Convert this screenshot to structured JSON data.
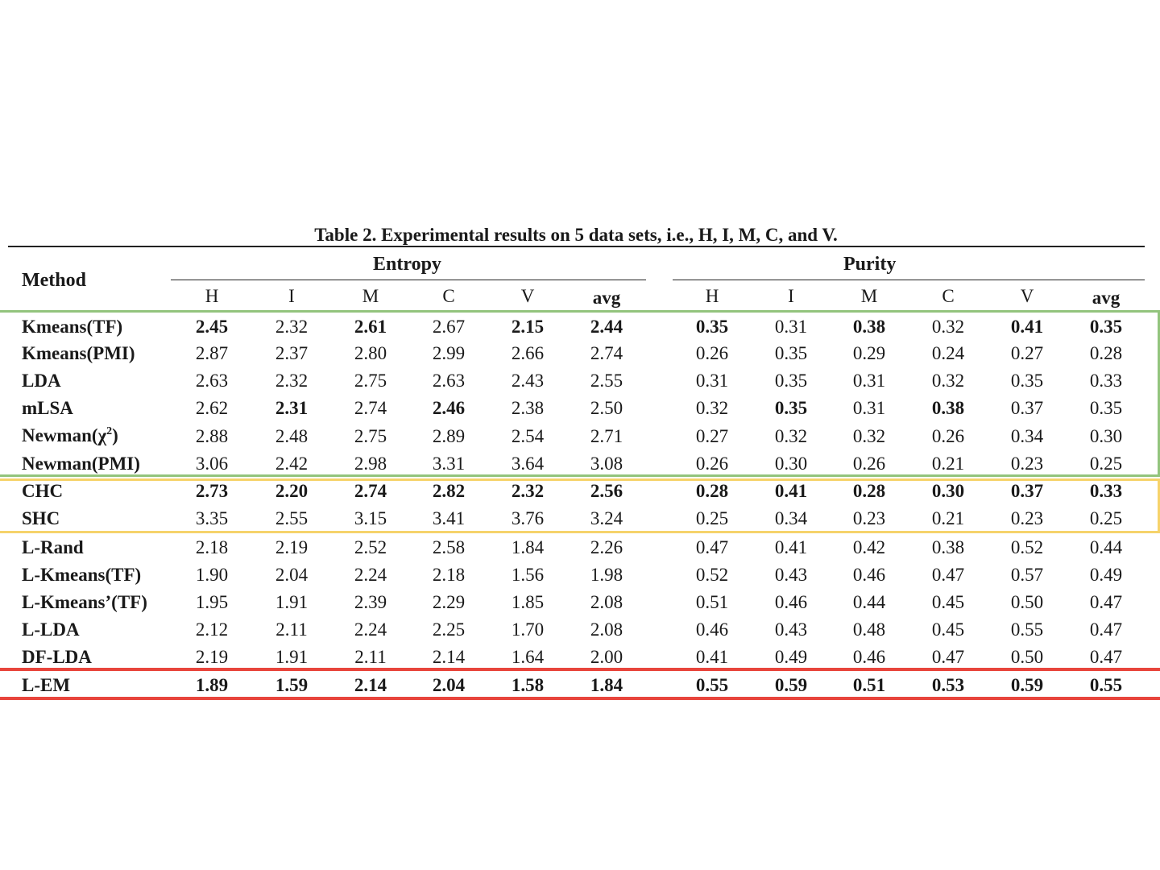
{
  "title": "Table 2. Experimental results on 5 data sets, i.e., H, I, M, C, and V.",
  "header": {
    "method": "Method",
    "entropy": "Entropy",
    "purity": "Purity",
    "subcols": [
      "H",
      "I",
      "M",
      "C",
      "V",
      "avg"
    ]
  },
  "colors": {
    "group_topic_models": "#93c47d",
    "group_hierarchical": "#f6d36b",
    "group_proposed": "#e8453c"
  },
  "rows": [
    {
      "method": "Kmeans(TF)",
      "entropy": [
        "2.45",
        "2.32",
        "2.61",
        "2.67",
        "2.15",
        "2.44"
      ],
      "entropy_bold": [
        true,
        false,
        true,
        false,
        true,
        true
      ],
      "purity": [
        "0.35",
        "0.31",
        "0.38",
        "0.32",
        "0.41",
        "0.35"
      ],
      "purity_bold": [
        true,
        false,
        true,
        false,
        true,
        true
      ]
    },
    {
      "method": "Kmeans(PMI)",
      "entropy": [
        "2.87",
        "2.37",
        "2.80",
        "2.99",
        "2.66",
        "2.74"
      ],
      "entropy_bold": [
        false,
        false,
        false,
        false,
        false,
        false
      ],
      "purity": [
        "0.26",
        "0.35",
        "0.29",
        "0.24",
        "0.27",
        "0.28"
      ],
      "purity_bold": [
        false,
        false,
        false,
        false,
        false,
        false
      ]
    },
    {
      "method": "LDA",
      "entropy": [
        "2.63",
        "2.32",
        "2.75",
        "2.63",
        "2.43",
        "2.55"
      ],
      "entropy_bold": [
        false,
        false,
        false,
        false,
        false,
        false
      ],
      "purity": [
        "0.31",
        "0.35",
        "0.31",
        "0.32",
        "0.35",
        "0.33"
      ],
      "purity_bold": [
        false,
        false,
        false,
        false,
        false,
        false
      ]
    },
    {
      "method": "mLSA",
      "entropy": [
        "2.62",
        "2.31",
        "2.74",
        "2.46",
        "2.38",
        "2.50"
      ],
      "entropy_bold": [
        false,
        true,
        false,
        true,
        false,
        false
      ],
      "purity": [
        "0.32",
        "0.35",
        "0.31",
        "0.38",
        "0.37",
        "0.35"
      ],
      "purity_bold": [
        false,
        true,
        false,
        true,
        false,
        false
      ]
    },
    {
      "method": "Newman(χ2)",
      "entropy": [
        "2.88",
        "2.48",
        "2.75",
        "2.89",
        "2.54",
        "2.71"
      ],
      "entropy_bold": [
        false,
        false,
        false,
        false,
        false,
        false
      ],
      "purity": [
        "0.27",
        "0.32",
        "0.32",
        "0.26",
        "0.34",
        "0.30"
      ],
      "purity_bold": [
        false,
        false,
        false,
        false,
        false,
        false
      ]
    },
    {
      "method": "Newman(PMI)",
      "entropy": [
        "3.06",
        "2.42",
        "2.98",
        "3.31",
        "3.64",
        "3.08"
      ],
      "entropy_bold": [
        false,
        false,
        false,
        false,
        false,
        false
      ],
      "purity": [
        "0.26",
        "0.30",
        "0.26",
        "0.21",
        "0.23",
        "0.25"
      ],
      "purity_bold": [
        false,
        false,
        false,
        false,
        false,
        false
      ]
    },
    {
      "method": "CHC",
      "entropy": [
        "2.73",
        "2.20",
        "2.74",
        "2.82",
        "2.32",
        "2.56"
      ],
      "entropy_bold": [
        true,
        true,
        true,
        true,
        true,
        true
      ],
      "purity": [
        "0.28",
        "0.41",
        "0.28",
        "0.30",
        "0.37",
        "0.33"
      ],
      "purity_bold": [
        true,
        true,
        true,
        true,
        true,
        true
      ]
    },
    {
      "method": "SHC",
      "entropy": [
        "3.35",
        "2.55",
        "3.15",
        "3.41",
        "3.76",
        "3.24"
      ],
      "entropy_bold": [
        false,
        false,
        false,
        false,
        false,
        false
      ],
      "purity": [
        "0.25",
        "0.34",
        "0.23",
        "0.21",
        "0.23",
        "0.25"
      ],
      "purity_bold": [
        false,
        false,
        false,
        false,
        false,
        false
      ]
    },
    {
      "method": "L-Rand",
      "entropy": [
        "2.18",
        "2.19",
        "2.52",
        "2.58",
        "1.84",
        "2.26"
      ],
      "entropy_bold": [
        false,
        false,
        false,
        false,
        false,
        false
      ],
      "purity": [
        "0.47",
        "0.41",
        "0.42",
        "0.38",
        "0.52",
        "0.44"
      ],
      "purity_bold": [
        false,
        false,
        false,
        false,
        false,
        false
      ]
    },
    {
      "method": "L-Kmeans(TF)",
      "entropy": [
        "1.90",
        "2.04",
        "2.24",
        "2.18",
        "1.56",
        "1.98"
      ],
      "entropy_bold": [
        false,
        false,
        false,
        false,
        false,
        false
      ],
      "purity": [
        "0.52",
        "0.43",
        "0.46",
        "0.47",
        "0.57",
        "0.49"
      ],
      "purity_bold": [
        false,
        false,
        false,
        false,
        false,
        false
      ]
    },
    {
      "method": "L-Kmeans’(TF)",
      "entropy": [
        "1.95",
        "1.91",
        "2.39",
        "2.29",
        "1.85",
        "2.08"
      ],
      "entropy_bold": [
        false,
        false,
        false,
        false,
        false,
        false
      ],
      "purity": [
        "0.51",
        "0.46",
        "0.44",
        "0.45",
        "0.50",
        "0.47"
      ],
      "purity_bold": [
        false,
        false,
        false,
        false,
        false,
        false
      ]
    },
    {
      "method": "L-LDA",
      "entropy": [
        "2.12",
        "2.11",
        "2.24",
        "2.25",
        "1.70",
        "2.08"
      ],
      "entropy_bold": [
        false,
        false,
        false,
        false,
        false,
        false
      ],
      "purity": [
        "0.46",
        "0.43",
        "0.48",
        "0.45",
        "0.55",
        "0.47"
      ],
      "purity_bold": [
        false,
        false,
        false,
        false,
        false,
        false
      ]
    },
    {
      "method": "DF-LDA",
      "entropy": [
        "2.19",
        "1.91",
        "2.11",
        "2.14",
        "1.64",
        "2.00"
      ],
      "entropy_bold": [
        false,
        false,
        false,
        false,
        false,
        false
      ],
      "purity": [
        "0.41",
        "0.49",
        "0.46",
        "0.47",
        "0.50",
        "0.47"
      ],
      "purity_bold": [
        false,
        false,
        false,
        false,
        false,
        false
      ]
    },
    {
      "method": "L-EM",
      "entropy": [
        "1.89",
        "1.59",
        "2.14",
        "2.04",
        "1.58",
        "1.84"
      ],
      "entropy_bold": [
        true,
        true,
        true,
        true,
        true,
        true
      ],
      "purity": [
        "0.55",
        "0.59",
        "0.51",
        "0.53",
        "0.59",
        "0.55"
      ],
      "purity_bold": [
        true,
        true,
        true,
        true,
        true,
        true
      ]
    }
  ]
}
